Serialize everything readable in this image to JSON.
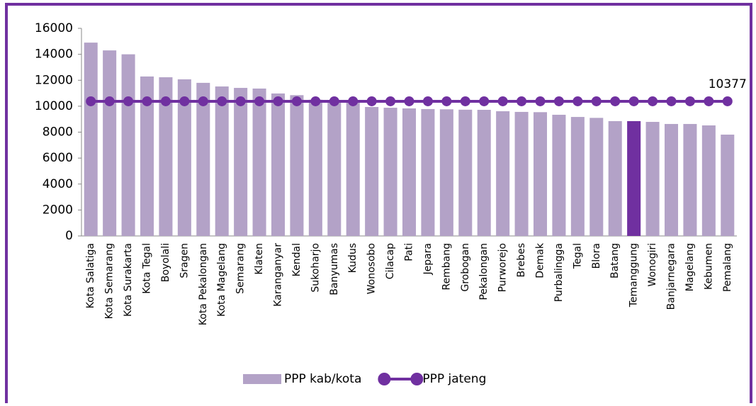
{
  "chart_data": {
    "type": "bar-line",
    "categories": [
      "Kota Salatiga",
      "Kota Semarang",
      "Kota Surakarta",
      "Kota Tegal",
      "Boyolali",
      "Sragen",
      "Kota Pekalongan",
      "Kota Magelang",
      "Semarang",
      "Klaten",
      "Karanganyar",
      "Kendal",
      "Sukoharjo",
      "Banyumas",
      "Kudus",
      "Wonosobo",
      "Cilacap",
      "Pati",
      "Jepara",
      "Rembang",
      "Grobogan",
      "Pekalongan",
      "Purworejo",
      "Brebes",
      "Demak",
      "Purbalingga",
      "Tegal",
      "Blora",
      "Batang",
      "Temanggung",
      "Wonogiri",
      "Banjarnegara",
      "Magelang",
      "Kebumen",
      "Pemalang"
    ],
    "series": [
      {
        "name": "PPP kab/kota",
        "type": "bar",
        "color": "#b3a2c7",
        "colors": [
          "#b3a2c7",
          "#b3a2c7",
          "#b3a2c7",
          "#b3a2c7",
          "#b3a2c7",
          "#b3a2c7",
          "#b3a2c7",
          "#b3a2c7",
          "#b3a2c7",
          "#b3a2c7",
          "#b3a2c7",
          "#b3a2c7",
          "#b3a2c7",
          "#b3a2c7",
          "#b3a2c7",
          "#b3a2c7",
          "#b3a2c7",
          "#b3a2c7",
          "#b3a2c7",
          "#b3a2c7",
          "#b3a2c7",
          "#b3a2c7",
          "#b3a2c7",
          "#b3a2c7",
          "#b3a2c7",
          "#b3a2c7",
          "#b3a2c7",
          "#b3a2c7",
          "#b3a2c7",
          "#7030a0",
          "#b3a2c7",
          "#b3a2c7",
          "#b3a2c7",
          "#b3a2c7",
          "#b3a2c7"
        ],
        "values": [
          14900,
          14300,
          14000,
          12290,
          12230,
          12070,
          11800,
          11520,
          11410,
          11360,
          10980,
          10850,
          10500,
          10450,
          10400,
          9940,
          9880,
          9830,
          9780,
          9760,
          9730,
          9720,
          9610,
          9560,
          9540,
          9340,
          9170,
          9100,
          8850,
          8850,
          8790,
          8630,
          8630,
          8520,
          7810
        ]
      },
      {
        "name": "PPP jateng",
        "type": "line",
        "color": "#7030a0",
        "values": [
          10377,
          10377,
          10377,
          10377,
          10377,
          10377,
          10377,
          10377,
          10377,
          10377,
          10377,
          10377,
          10377,
          10377,
          10377,
          10377,
          10377,
          10377,
          10377,
          10377,
          10377,
          10377,
          10377,
          10377,
          10377,
          10377,
          10377,
          10377,
          10377,
          10377,
          10377,
          10377,
          10377,
          10377,
          10377
        ]
      }
    ],
    "ylim": [
      0,
      16000
    ],
    "yticks": [
      0,
      2000,
      4000,
      6000,
      8000,
      10000,
      12000,
      14000,
      16000
    ],
    "legend": "bottom",
    "frame_color": "#7030a0"
  }
}
